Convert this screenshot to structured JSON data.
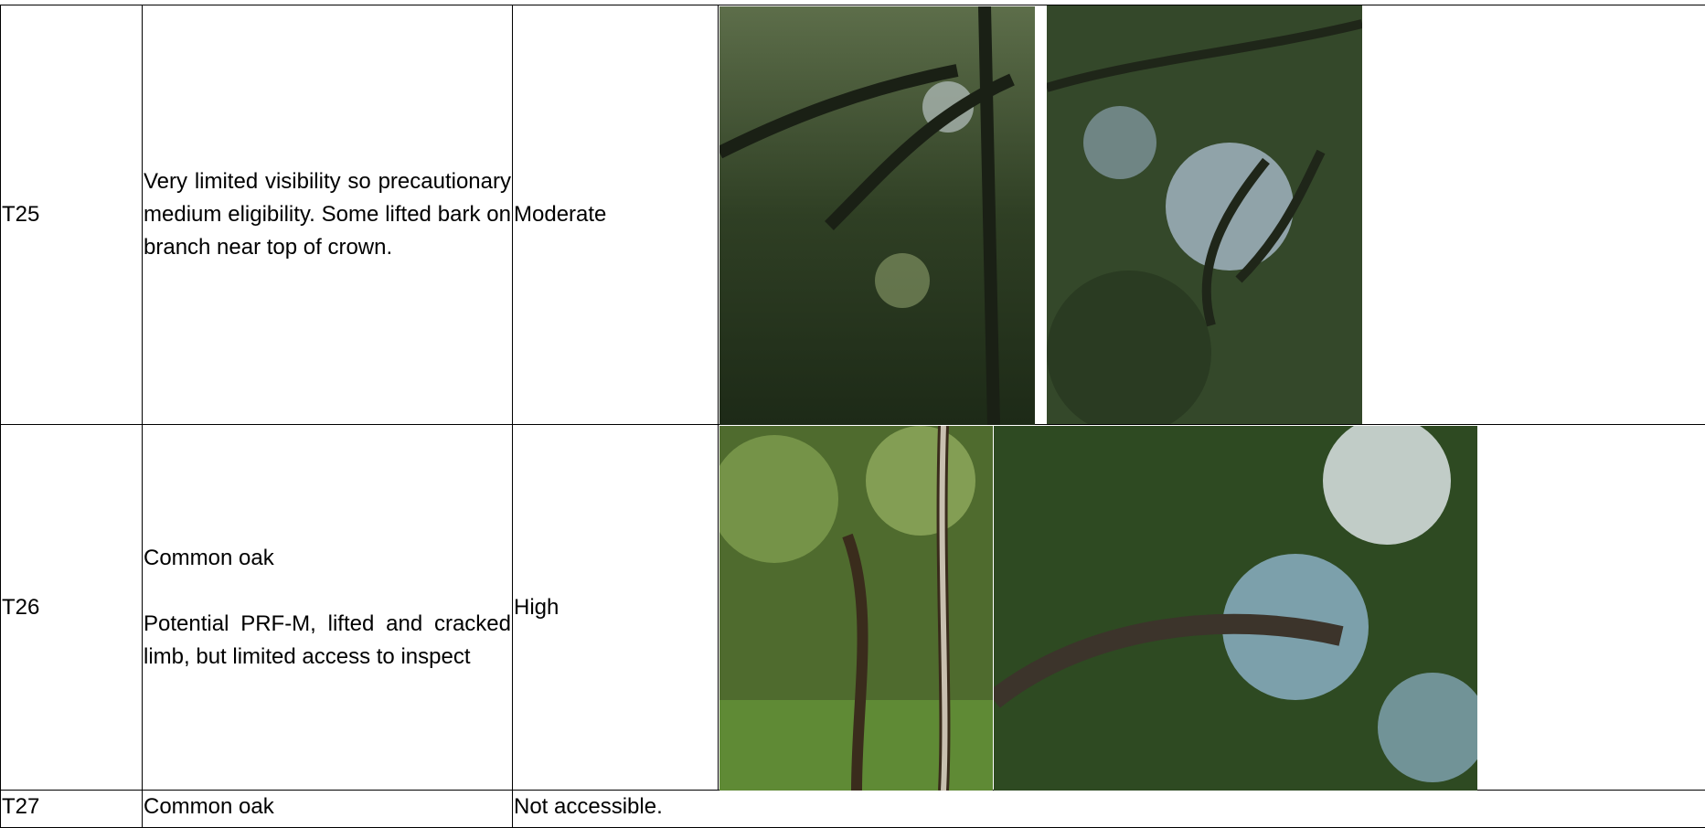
{
  "rows": [
    {
      "id": "T25",
      "description": [
        "Very limited visibility so precautionary medium eligibility. Some lifted bark on branch near top of crown."
      ],
      "rating": "Moderate"
    },
    {
      "id": "T26",
      "description": [
        "Common oak",
        "Potential PRF-M, lifted and cracked limb, but limited access to inspect"
      ],
      "rating": "High"
    },
    {
      "id": "T27",
      "description": [
        "Common oak"
      ],
      "rating": "Not accessible."
    }
  ]
}
